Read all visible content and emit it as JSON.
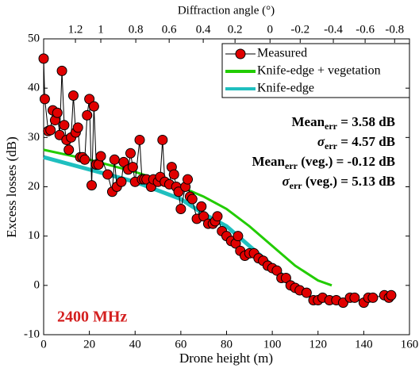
{
  "chart_data": {
    "type": "line",
    "xlabel": "Drone height (m)",
    "ylabel": "Excess losses (dB)",
    "x2label": "Diffraction angle (°)",
    "xlim": [
      0,
      160
    ],
    "xticks": [
      0,
      20,
      40,
      60,
      80,
      100,
      120,
      140,
      160
    ],
    "ylim": [
      -10,
      50
    ],
    "yticks": [
      -10,
      0,
      10,
      20,
      30,
      40,
      50
    ],
    "x2ticks": [
      {
        "value": 1.2,
        "at": 13.9
      },
      {
        "value": 1,
        "at": 25
      },
      {
        "value": 0.8,
        "at": 40.3
      },
      {
        "value": 0.6,
        "at": 54.9
      },
      {
        "value": 0.4,
        "at": 69.8
      },
      {
        "value": 0.2,
        "at": 83.7
      },
      {
        "value": 0,
        "at": 99
      },
      {
        "value": -0.2,
        "at": 112.2
      },
      {
        "value": -0.4,
        "at": 126.7
      },
      {
        "value": -0.6,
        "at": 140.6
      },
      {
        "value": -0.8,
        "at": 153.5
      }
    ],
    "legend": "top-right",
    "series": [
      {
        "name": "Measured",
        "color": "#e00000",
        "marker": true,
        "x": [
          0,
          0.5,
          2,
          3,
          4,
          5,
          6,
          7,
          8,
          9,
          10,
          11,
          12,
          13,
          14,
          15,
          16,
          17,
          18,
          19,
          20,
          21,
          22,
          23,
          24,
          25,
          28,
          30,
          31,
          32,
          34,
          35,
          37,
          38,
          39,
          40,
          42,
          43,
          44,
          45,
          47,
          48,
          50,
          51,
          52,
          53,
          55,
          56,
          57,
          58,
          59,
          60,
          62,
          63,
          64,
          65,
          67,
          69,
          70,
          72,
          74,
          75,
          76,
          78,
          80,
          82,
          84,
          85,
          86,
          88,
          90,
          92,
          94,
          96,
          98,
          100,
          102,
          104,
          106,
          108,
          110,
          112,
          115,
          118,
          120,
          122,
          125,
          128,
          131,
          134,
          136,
          140,
          142,
          144,
          149,
          151,
          152
        ],
        "values": [
          46,
          37.8,
          31.3,
          31.5,
          35.5,
          33.5,
          35,
          30.5,
          43.5,
          32.5,
          29.5,
          27.5,
          30,
          38.5,
          31,
          32,
          26,
          26,
          25.5,
          34.5,
          37.8,
          20.3,
          36.3,
          24.5,
          24.5,
          26.2,
          22.5,
          19,
          25.5,
          20,
          21,
          25,
          23.5,
          26.8,
          24,
          21,
          29.5,
          21.5,
          21.5,
          21.5,
          20,
          21.5,
          21,
          22,
          29.5,
          21,
          20.5,
          24,
          22.5,
          20,
          19,
          15.5,
          20,
          21.5,
          18,
          17.5,
          13.5,
          16,
          14,
          12.5,
          12.5,
          13,
          14,
          11,
          10,
          9,
          8.5,
          10,
          7,
          6,
          6.5,
          6.5,
          5.5,
          5,
          4,
          3.5,
          3,
          1.5,
          1.5,
          0,
          -0.5,
          -1,
          -1.5,
          -3,
          -3,
          -2.5,
          -3,
          -3,
          -3.5,
          -2.5,
          -2.5,
          -3.5,
          -2.5,
          -2.5,
          -2,
          -2.5,
          -2
        ]
      },
      {
        "name": "Knife-edge + vegetation",
        "color": "#22cc00",
        "x": [
          0,
          20,
          40,
          60,
          70,
          80,
          90,
          100,
          110,
          120,
          126
        ],
        "values": [
          27.5,
          25.5,
          23,
          20,
          18,
          15.5,
          12,
          8,
          4,
          1,
          0
        ]
      },
      {
        "name": "Knife-edge",
        "color": "#1fbfbf",
        "x": [
          0,
          20,
          40,
          60,
          70,
          80,
          90,
          100,
          109
        ],
        "values": [
          26,
          23.5,
          21,
          17.5,
          14.5,
          12,
          8,
          4,
          0
        ]
      }
    ],
    "annotations": [
      {
        "lead": "Mean",
        "sub": "err",
        "tail": " = 3.58 dB"
      },
      {
        "lead": "σ",
        "sub": "err",
        "tail": " = 4.57 dB"
      },
      {
        "lead": "Mean",
        "sub": "err",
        "tail": " (veg.) = -0.12 dB"
      },
      {
        "lead": "σ",
        "sub": "err",
        "tail": " (veg.) = 5.13 dB"
      }
    ],
    "frequency_label": "2400 MHz"
  }
}
